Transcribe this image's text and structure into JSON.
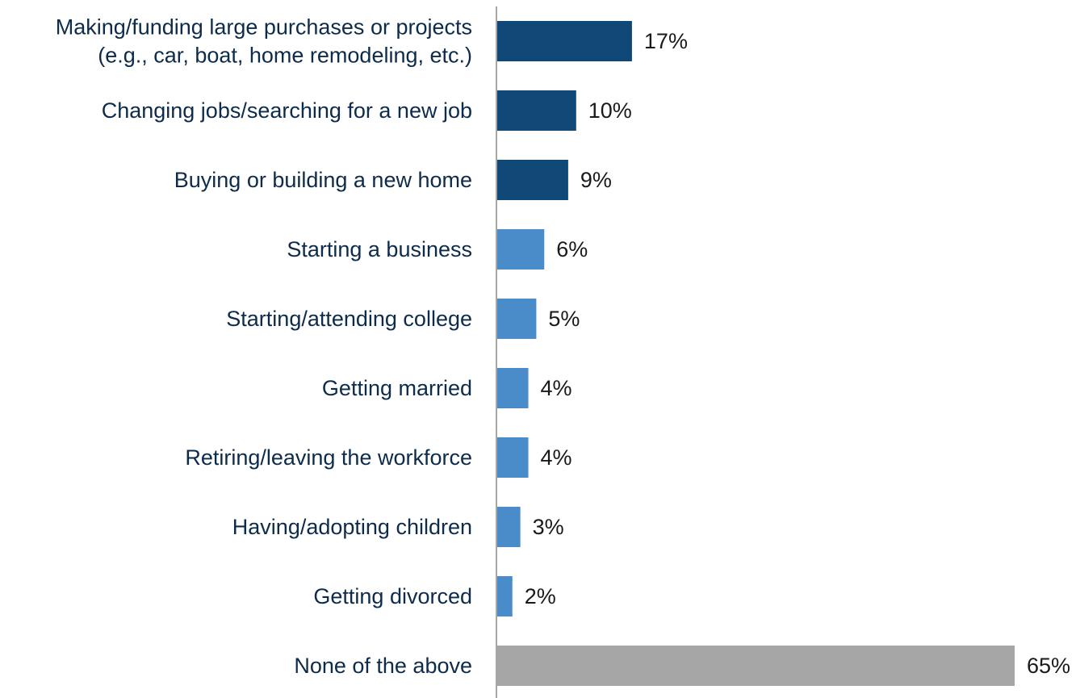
{
  "chart_data": {
    "type": "bar",
    "orientation": "horizontal",
    "title": "",
    "xlabel": "",
    "ylabel": "",
    "xlim": [
      0,
      65
    ],
    "grid": false,
    "legend": "none",
    "value_format": "{v}%",
    "categories": [
      [
        "Making/funding large purchases or projects",
        "(e.g., car, boat, home remodeling, etc.)"
      ],
      [
        "Changing jobs/searching for a new job"
      ],
      [
        "Buying or building a new home"
      ],
      [
        "Starting a business"
      ],
      [
        "Starting/attending college"
      ],
      [
        "Getting married"
      ],
      [
        "Retiring/leaving the workforce"
      ],
      [
        "Having/adopting children"
      ],
      [
        "Getting divorced"
      ],
      [
        "None of the above"
      ]
    ],
    "values": [
      17,
      10,
      9,
      6,
      5,
      4,
      4,
      3,
      2,
      65
    ],
    "value_labels": [
      "17%",
      "10%",
      "9%",
      "6%",
      "5%",
      "4%",
      "4%",
      "3%",
      "2%",
      "65%"
    ],
    "bar_colors": [
      "#0f4777",
      "#0f4777",
      "#0f4777",
      "#4a8cca",
      "#4a8cca",
      "#4a8cca",
      "#4a8cca",
      "#4a8cca",
      "#4a8cca",
      "#a6a6a6"
    ],
    "axis_color": "#a6a6a6"
  }
}
